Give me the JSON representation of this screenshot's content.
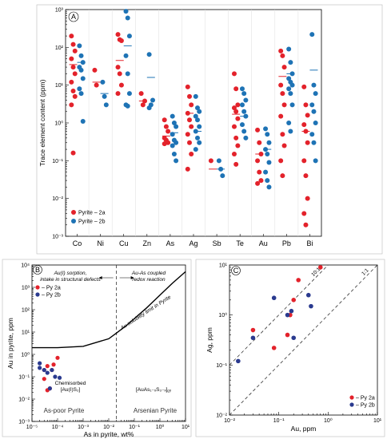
{
  "colors": {
    "series_a": "#e3222b",
    "series_b": "#1e73b5",
    "series_b_dark": "#2a3a8f",
    "mean_a": "#e3222b",
    "mean_b": "#1e73b5"
  },
  "chart_data": [
    {
      "id": "A",
      "panel_label": "A",
      "type": "scatter",
      "y_scale": "log",
      "ylim": [
        0.001,
        1000
      ],
      "ylabel": "Trace element content (ppm)",
      "y_ticks": [
        {
          "v": 0.001,
          "label": "10⁻³"
        },
        {
          "v": 0.01,
          "label": "10⁻²"
        },
        {
          "v": 0.1,
          "label": "10⁻¹"
        },
        {
          "v": 1,
          "label": "10⁰"
        },
        {
          "v": 10,
          "label": "10¹"
        },
        {
          "v": 100,
          "label": "10²"
        },
        {
          "v": 1000,
          "label": "10³"
        }
      ],
      "categories": [
        "Co",
        "Ni",
        "Cu",
        "Zn",
        "As",
        "Ag",
        "Sb",
        "Te",
        "Au",
        "Pb",
        "Bi"
      ],
      "legend": {
        "placement": "bottom-left",
        "entries": [
          "Pyrite – 2a",
          "Pyrite – 2b"
        ]
      },
      "series": [
        {
          "name": "Pyrite – 2a",
          "values": [
            [
              200,
              120,
              80,
              50,
              30,
              20,
              12,
              7,
              5,
              3,
              0.16
            ],
            [
              25,
              10
            ],
            [
              220,
              160,
              150,
              30,
              20,
              10,
              6
            ],
            [
              6,
              3,
              3.8
            ],
            [
              1.2,
              0.8,
              0.6,
              0.4,
              0.35,
              0.3,
              0.28
            ],
            [
              9,
              5,
              3,
              1.8,
              1.2,
              0.8,
              0.5,
              0.3,
              0.15,
              0.06
            ],
            [
              0.1
            ],
            [
              20,
              8,
              3,
              2.5,
              2,
              1.3,
              0.8,
              0.4,
              0.25,
              0.15,
              0.08
            ],
            [
              0.65,
              0.3,
              0.15,
              0.1,
              0.05,
              0.03,
              0.025
            ],
            [
              80,
              60,
              30,
              10,
              6,
              3,
              1.5,
              0.5,
              0.25,
              0.1,
              0.04
            ],
            [
              9,
              3,
              1.6,
              0.9,
              0.6,
              0.3,
              0.1,
              0.04,
              0.01,
              0.004,
              0.002
            ]
          ],
          "means": [
            35,
            12,
            45,
            3.8,
            0.45,
            1.8,
            0.06,
            1.7,
            0.15,
            17,
            0.6
          ]
        },
        {
          "name": "Pyrite – 2b",
          "values": [
            [
              110,
              60,
              40,
              30,
              25,
              15,
              8,
              6,
              1.1
            ],
            [
              12,
              5,
              3
            ],
            [
              900,
              600,
              200,
              60,
              20,
              6,
              3,
              2.8
            ],
            [
              65,
              3,
              4,
              2.5
            ],
            [
              1.5,
              1,
              0.8,
              0.5,
              0.35,
              0.3,
              0.25,
              0.15,
              0.1
            ],
            [
              5,
              2.5,
              2,
              1.5,
              1.2,
              0.8,
              0.6,
              0.4,
              0.3,
              0.2
            ],
            [
              0.1,
              0.06,
              0.04
            ],
            [
              8,
              6,
              4,
              3,
              2,
              1.5,
              0.9,
              0.6,
              0.4
            ],
            [
              0.7,
              0.5,
              0.3,
              0.2,
              0.15,
              0.09,
              0.05,
              0.03,
              0.02
            ],
            [
              90,
              40,
              20,
              15,
              12,
              10,
              8,
              6,
              3,
              1,
              0.6
            ],
            [
              220,
              10,
              6,
              3,
              2,
              1,
              0.5,
              0.3,
              0.1
            ]
          ],
          "means": [
            40,
            6,
            110,
            16,
            0.55,
            0.6,
            0.06,
            1.5,
            0.2,
            20,
            25
          ]
        }
      ]
    },
    {
      "id": "B",
      "panel_label": "B",
      "type": "scatter",
      "x_scale": "log",
      "y_scale": "log",
      "xlim": [
        1e-05,
        10
      ],
      "ylim": [
        0.001,
        10000
      ],
      "xlabel": "As in pyrite, wt%",
      "ylabel": "Au in pyrite, ppm",
      "x_ticks": [
        {
          "v": 1e-05,
          "label": "10⁻⁵"
        },
        {
          "v": 0.0001,
          "label": "10⁻⁴"
        },
        {
          "v": 0.001,
          "label": "10⁻³"
        },
        {
          "v": 0.01,
          "label": "10⁻²"
        },
        {
          "v": 0.1,
          "label": "10⁻¹"
        },
        {
          "v": 1,
          "label": "10⁰"
        },
        {
          "v": 10,
          "label": "10¹"
        }
      ],
      "y_ticks": [
        {
          "v": 0.001,
          "label": "10⁻³"
        },
        {
          "v": 0.01,
          "label": "10⁻²"
        },
        {
          "v": 0.1,
          "label": "10⁻¹"
        },
        {
          "v": 1,
          "label": "10⁰"
        },
        {
          "v": 10,
          "label": "10¹"
        },
        {
          "v": 100,
          "label": "10²"
        },
        {
          "v": 1000,
          "label": "10³"
        },
        {
          "v": 10000,
          "label": "10⁴"
        }
      ],
      "legend": {
        "placement": "top-left",
        "entries": [
          "– Py 2a",
          "– Py 2b"
        ]
      },
      "series": [
        {
          "name": "– Py 2a",
          "points": [
            [
              4e-05,
              0.3
            ],
            [
              3e-05,
              0.2
            ],
            [
              3e-05,
              0.08
            ],
            [
              4e-05,
              0.025
            ],
            [
              6e-05,
              0.2
            ],
            [
              7e-05,
              0.35
            ],
            [
              0.0001,
              0.7
            ],
            [
              5e-05,
              0.03
            ]
          ]
        },
        {
          "name": "– Py 2b",
          "points": [
            [
              2e-05,
              0.4
            ],
            [
              3e-05,
              0.2
            ],
            [
              4e-05,
              0.15
            ],
            [
              5e-05,
              0.03
            ],
            [
              8e-05,
              0.1
            ],
            [
              0.00012,
              0.09
            ],
            [
              2e-05,
              0.25
            ],
            [
              6e-05,
              0.2
            ]
          ]
        }
      ],
      "solubility_curve": [
        [
          1e-05,
          2
        ],
        [
          0.0001,
          2
        ],
        [
          0.001,
          2.3
        ],
        [
          0.01,
          5
        ],
        [
          0.02,
          9
        ],
        [
          0.05,
          20
        ],
        [
          0.1,
          40
        ],
        [
          0.3,
          120
        ],
        [
          1,
          450
        ],
        [
          3,
          1500
        ],
        [
          10,
          5000
        ]
      ],
      "divider_x": 0.02,
      "annotations": {
        "left_top": [
          "Au(I) sorption,",
          "intake in structural defects"
        ],
        "right_top": [
          "Au-As coupled",
          "redox reaction"
        ],
        "curve": "Au solubility limit in Pyrite",
        "chemisorbed": [
          "Chemisorbed",
          "[Au(I)S₂]"
        ],
        "region_left": "As-poor Pyrite",
        "formula": "[AuAs₁₋ₓS₃₋ₓ]ᵨᵧ",
        "region_right": "Arsenian Pyrite"
      }
    },
    {
      "id": "C",
      "panel_label": "C",
      "type": "scatter",
      "x_scale": "log",
      "y_scale": "log",
      "xlim": [
        0.01,
        10
      ],
      "ylim": [
        0.01,
        10
      ],
      "xlabel": "Au, ppm",
      "ylabel": "Ag, ppm",
      "x_ticks": [
        {
          "v": 0.01,
          "label": "10⁻²"
        },
        {
          "v": 0.1,
          "label": "10⁻¹"
        },
        {
          "v": 1,
          "label": "10⁰"
        },
        {
          "v": 10,
          "label": "10¹"
        }
      ],
      "y_ticks": [
        {
          "v": 0.01,
          "label": "10⁻²"
        },
        {
          "v": 0.1,
          "label": "10⁻¹"
        },
        {
          "v": 1,
          "label": "10⁰"
        },
        {
          "v": 10,
          "label": "10¹"
        }
      ],
      "ratio_lines": [
        {
          "ratio": 10,
          "label": "10:1"
        },
        {
          "ratio": 1,
          "label": "1:1"
        }
      ],
      "legend": {
        "placement": "bottom-right",
        "entries": [
          "– Py 2a",
          "– Py 2b"
        ]
      },
      "series": [
        {
          "name": "– Py 2a",
          "points": [
            [
              0.7,
              9
            ],
            [
              0.25,
              5
            ],
            [
              0.2,
              2
            ],
            [
              0.17,
              1
            ],
            [
              0.03,
              0.5
            ],
            [
              0.08,
              0.22
            ],
            [
              0.15,
              0.4
            ]
          ]
        },
        {
          "name": "– Py 2b",
          "points": [
            [
              0.08,
              2.2
            ],
            [
              0.18,
              1.2
            ],
            [
              0.45,
              1.5
            ],
            [
              0.4,
              2.5
            ],
            [
              0.015,
              0.12
            ],
            [
              0.03,
              0.35
            ],
            [
              0.2,
              0.35
            ],
            [
              0.15,
              1
            ]
          ]
        }
      ]
    }
  ]
}
